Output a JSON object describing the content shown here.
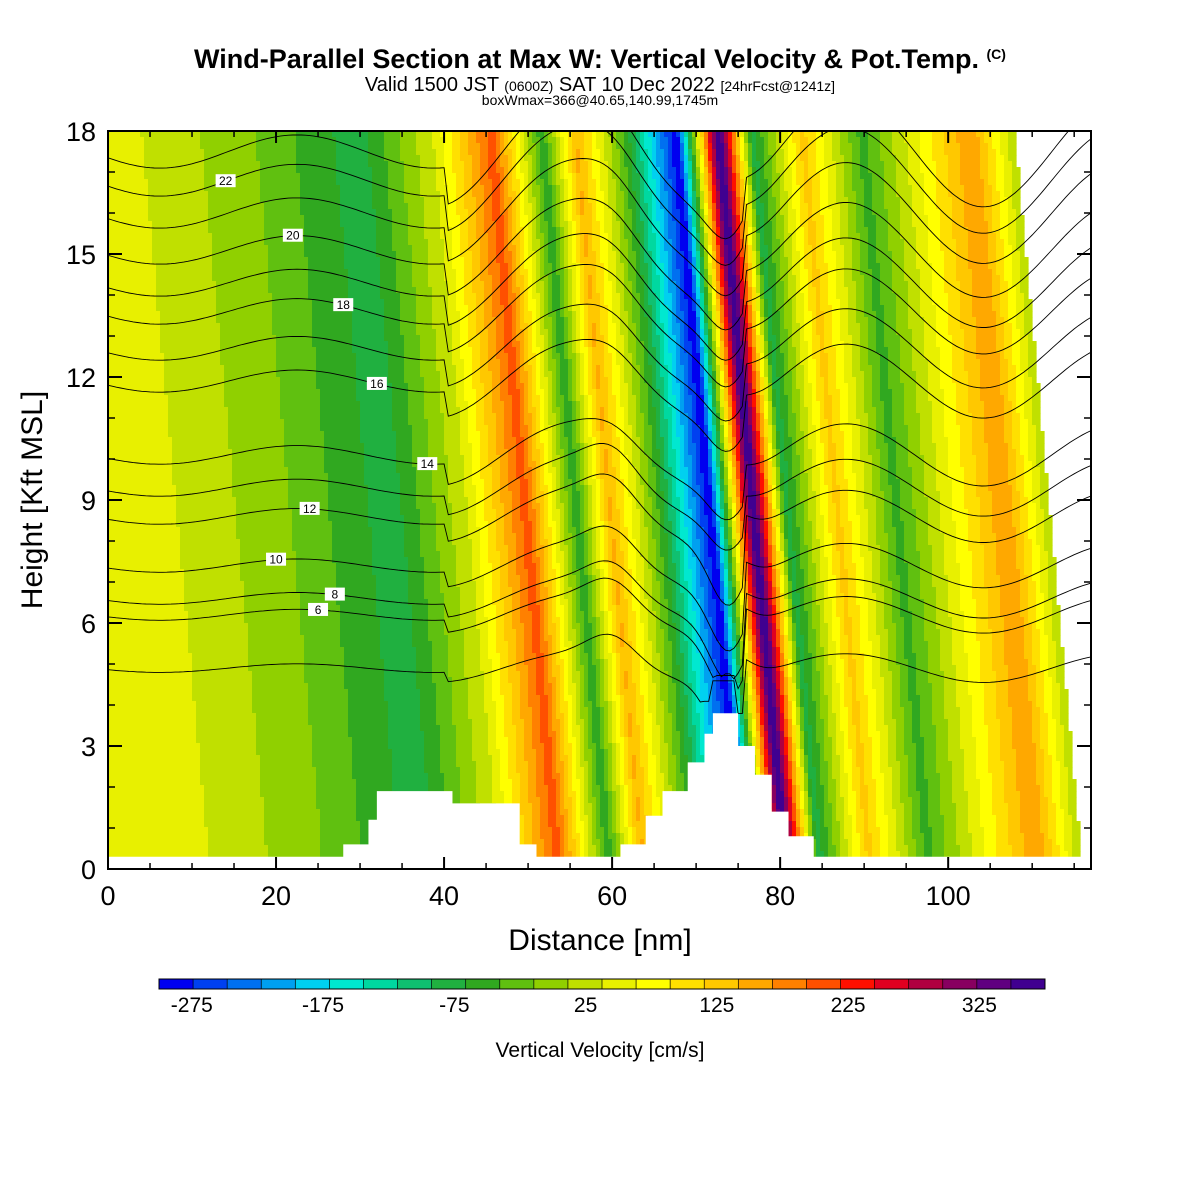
{
  "header": {
    "title": "Wind-Parallel Section at Max W: Vertical Velocity & Pot.Temp.",
    "copyright_mark": "(C)",
    "valid_prefix": "Valid 1500 JST",
    "valid_utc": "(0600Z)",
    "valid_date": "SAT 10 Dec 2022",
    "forecast_info": "[24hrFcst@1241z]",
    "box_info": "boxWmax=366@40.65,140.99,1745m"
  },
  "chart_data": {
    "type": "heatmap",
    "xlabel": "Distance [nm]",
    "ylabel": "Height [Kft MSL]",
    "xlim": [
      0,
      117
    ],
    "ylim": [
      0,
      18
    ],
    "x_ticks": [
      0,
      20,
      40,
      60,
      80,
      100
    ],
    "y_ticks": [
      0,
      3,
      6,
      9,
      12,
      15,
      18
    ],
    "colorbar": {
      "label": "Vertical Velocity [cm/s]",
      "range": [
        -300,
        375
      ],
      "step": 25,
      "tick_labels": [
        -275,
        -175,
        -75,
        25,
        125,
        225,
        325
      ],
      "colors": [
        "#0000f0",
        "#0040f0",
        "#0070f0",
        "#00a0f0",
        "#00d0f0",
        "#00e8d0",
        "#00d8a0",
        "#10c070",
        "#20b040",
        "#30a820",
        "#60c010",
        "#90d000",
        "#c0e000",
        "#e8f000",
        "#ffff00",
        "#ffe000",
        "#ffc800",
        "#ffa800",
        "#ff8000",
        "#ff5000",
        "#ff1000",
        "#e00020",
        "#b00040",
        "#880060",
        "#600080",
        "#400090"
      ]
    },
    "vertical_velocity_bands": [
      {
        "x": 8,
        "w_cms": 30
      },
      {
        "x": 22,
        "w_cms": -20
      },
      {
        "x": 35,
        "w_cms": -90
      },
      {
        "x": 44,
        "w_cms": 25
      },
      {
        "x": 51,
        "w_cms": 190
      },
      {
        "x": 57,
        "w_cms": -70
      },
      {
        "x": 61,
        "w_cms": 130
      },
      {
        "x": 67,
        "w_cms": -60
      },
      {
        "x": 73,
        "w_cms": -300
      },
      {
        "x": 78,
        "w_cms": 366
      },
      {
        "x": 82,
        "w_cms": -90
      },
      {
        "x": 88,
        "w_cms": 110
      },
      {
        "x": 95,
        "w_cms": -60
      },
      {
        "x": 108,
        "w_cms": 150
      },
      {
        "x": 114,
        "w_cms": -20
      }
    ],
    "terrain": [
      {
        "x": 0,
        "h": 0.3
      },
      {
        "x": 27,
        "h": 0.3
      },
      {
        "x": 28,
        "h": 0.6
      },
      {
        "x": 30,
        "h": 0.6
      },
      {
        "x": 31,
        "h": 1.2
      },
      {
        "x": 32,
        "h": 1.9
      },
      {
        "x": 40,
        "h": 1.9
      },
      {
        "x": 41,
        "h": 1.6
      },
      {
        "x": 46,
        "h": 1.6
      },
      {
        "x": 49,
        "h": 0.6
      },
      {
        "x": 51,
        "h": 0.3
      },
      {
        "x": 60,
        "h": 0.3
      },
      {
        "x": 61,
        "h": 0.6
      },
      {
        "x": 64,
        "h": 1.3
      },
      {
        "x": 66,
        "h": 1.9
      },
      {
        "x": 69,
        "h": 2.6
      },
      {
        "x": 71,
        "h": 3.3
      },
      {
        "x": 72,
        "h": 3.8
      },
      {
        "x": 74,
        "h": 3.8
      },
      {
        "x": 75,
        "h": 3.0
      },
      {
        "x": 77,
        "h": 2.3
      },
      {
        "x": 79,
        "h": 1.4
      },
      {
        "x": 81,
        "h": 0.8
      },
      {
        "x": 84,
        "h": 0.3
      },
      {
        "x": 117,
        "h": 0.3
      }
    ],
    "isentropes": [
      {
        "label": "6",
        "left_h": 6.2,
        "label_x": 25
      },
      {
        "label": "8",
        "left_h": 6.6,
        "label_x": 27
      },
      {
        "label": "10",
        "left_h": 7.4,
        "label_x": 20
      },
      {
        "label": "12",
        "left_h": 8.6,
        "label_x": 24
      },
      {
        "label": "14",
        "left_h": 10.1,
        "label_x": 38
      },
      {
        "label": "16",
        "left_h": 11.9,
        "label_x": 32
      },
      {
        "label": "18",
        "left_h": 13.6,
        "label_x": 28
      },
      {
        "label": "20",
        "left_h": 15.1,
        "label_x": 22
      },
      {
        "label": "22",
        "left_h": 16.8,
        "label_x": 14
      },
      {
        "label": "",
        "left_h": 4.9,
        "label_x": 0
      },
      {
        "label": "",
        "left_h": 9.3,
        "label_x": 0
      },
      {
        "label": "",
        "left_h": 12.7,
        "label_x": 0
      },
      {
        "label": "",
        "left_h": 14.3,
        "label_x": 0
      },
      {
        "label": "",
        "left_h": 16.0,
        "label_x": 0
      },
      {
        "label": "",
        "left_h": 17.5,
        "label_x": 0
      }
    ]
  }
}
